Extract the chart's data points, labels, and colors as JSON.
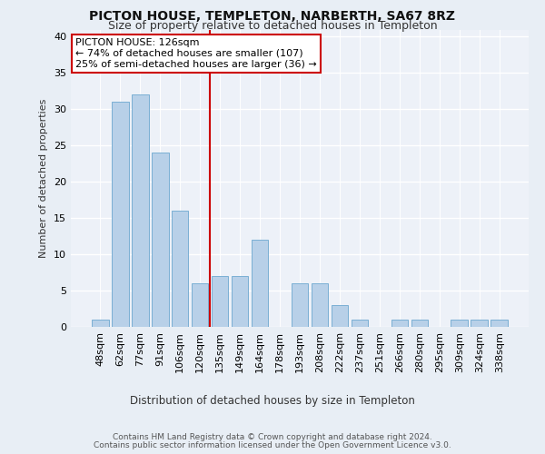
{
  "title1": "PICTON HOUSE, TEMPLETON, NARBERTH, SA67 8RZ",
  "title2": "Size of property relative to detached houses in Templeton",
  "xlabel": "Distribution of detached houses by size in Templeton",
  "ylabel": "Number of detached properties",
  "categories": [
    "48sqm",
    "62sqm",
    "77sqm",
    "91sqm",
    "106sqm",
    "120sqm",
    "135sqm",
    "149sqm",
    "164sqm",
    "178sqm",
    "193sqm",
    "208sqm",
    "222sqm",
    "237sqm",
    "251sqm",
    "266sqm",
    "280sqm",
    "295sqm",
    "309sqm",
    "324sqm",
    "338sqm"
  ],
  "values": [
    1,
    31,
    32,
    24,
    16,
    6,
    7,
    7,
    12,
    0,
    6,
    6,
    3,
    1,
    0,
    1,
    1,
    0,
    1,
    1,
    1
  ],
  "bar_color": "#b8d0e8",
  "bar_edge_color": "#7aafd4",
  "vline_x": 5.5,
  "vline_color": "#cc0000",
  "annotation_text": "PICTON HOUSE: 126sqm\n← 74% of detached houses are smaller (107)\n25% of semi-detached houses are larger (36) →",
  "annotation_box_color": "#ffffff",
  "annotation_box_edge": "#cc0000",
  "ylim": [
    0,
    41
  ],
  "yticks": [
    0,
    5,
    10,
    15,
    20,
    25,
    30,
    35,
    40
  ],
  "footer1": "Contains HM Land Registry data © Crown copyright and database right 2024.",
  "footer2": "Contains public sector information licensed under the Open Government Licence v3.0.",
  "bg_color": "#e8eef5",
  "plot_bg_color": "#edf1f8",
  "title_fontsize": 10,
  "subtitle_fontsize": 9,
  "ylabel_fontsize": 8,
  "xlabel_fontsize": 8.5,
  "tick_fontsize": 8,
  "annot_fontsize": 8,
  "footer_fontsize": 6.5
}
